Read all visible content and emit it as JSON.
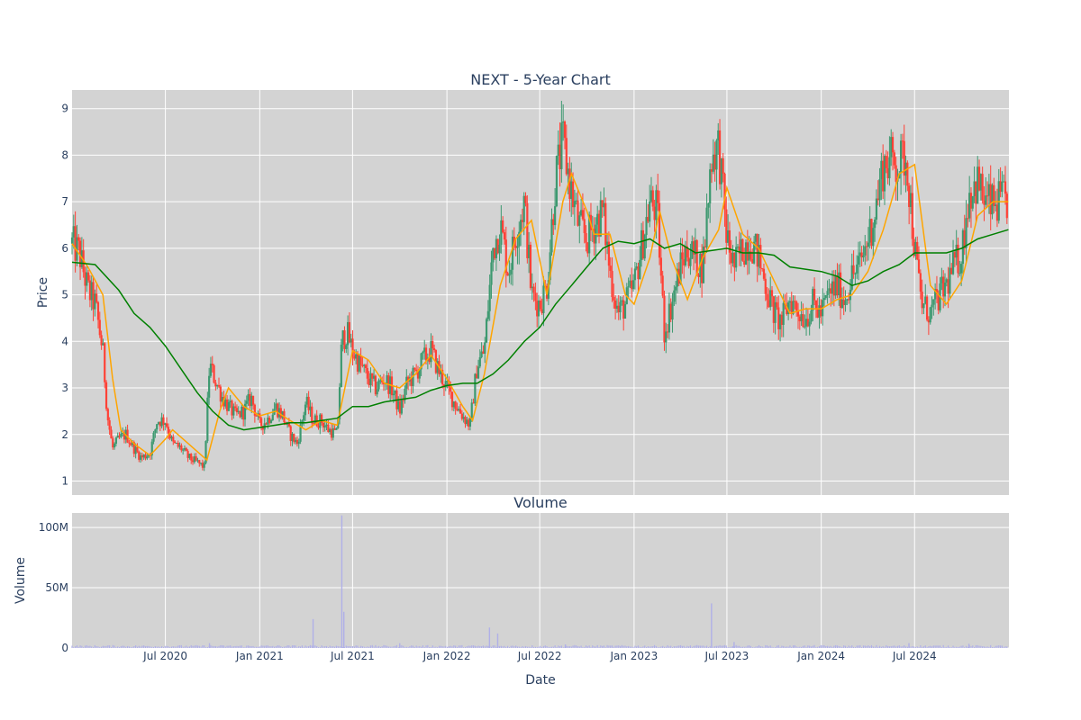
{
  "chart_data": [
    {
      "type": "candlestick",
      "title": "NEXT - 5-Year Chart",
      "ylabel": "Price",
      "xlabel": "",
      "ylim": [
        0.7,
        9.4
      ],
      "xlim": [
        "2020-01-01",
        "2025-01-01"
      ],
      "yticks": [
        1,
        2,
        3,
        4,
        5,
        6,
        7,
        8,
        9
      ],
      "grid": true,
      "background": "#d3d3d3",
      "up_color": "#3d9970",
      "down_color": "#ff4136",
      "close_series": [
        [
          "2020-01-01",
          6.1
        ],
        [
          "2020-01-15",
          5.9
        ],
        [
          "2020-02-01",
          5.1
        ],
        [
          "2020-02-15",
          4.8
        ],
        [
          "2020-03-01",
          3.8
        ],
        [
          "2020-03-10",
          2.4
        ],
        [
          "2020-03-20",
          1.7
        ],
        [
          "2020-04-01",
          1.9
        ],
        [
          "2020-04-15",
          2.0
        ],
        [
          "2020-05-01",
          1.7
        ],
        [
          "2020-05-15",
          1.5
        ],
        [
          "2020-06-01",
          1.6
        ],
        [
          "2020-06-15",
          2.3
        ],
        [
          "2020-07-01",
          2.3
        ],
        [
          "2020-07-15",
          1.8
        ],
        [
          "2020-08-01",
          1.7
        ],
        [
          "2020-08-15",
          1.5
        ],
        [
          "2020-09-01",
          1.4
        ],
        [
          "2020-09-15",
          1.3
        ],
        [
          "2020-09-25",
          3.5
        ],
        [
          "2020-10-05",
          3.2
        ],
        [
          "2020-10-20",
          2.8
        ],
        [
          "2020-11-01",
          2.6
        ],
        [
          "2020-11-15",
          2.4
        ],
        [
          "2020-12-01",
          2.5
        ],
        [
          "2020-12-15",
          2.8
        ],
        [
          "2021-01-01",
          2.2
        ],
        [
          "2021-01-15",
          2.3
        ],
        [
          "2021-02-01",
          2.6
        ],
        [
          "2021-02-15",
          2.4
        ],
        [
          "2021-03-01",
          2.0
        ],
        [
          "2021-03-15",
          1.8
        ],
        [
          "2021-04-01",
          2.7
        ],
        [
          "2021-04-15",
          2.3
        ],
        [
          "2021-05-01",
          2.3
        ],
        [
          "2021-05-15",
          2.1
        ],
        [
          "2021-06-01",
          2.0
        ],
        [
          "2021-06-10",
          4.0
        ],
        [
          "2021-06-20",
          4.2
        ],
        [
          "2021-07-01",
          3.8
        ],
        [
          "2021-07-15",
          3.5
        ],
        [
          "2021-08-01",
          3.2
        ],
        [
          "2021-08-15",
          3.0
        ],
        [
          "2021-09-01",
          3.2
        ],
        [
          "2021-09-15",
          3.0
        ],
        [
          "2021-10-01",
          2.5
        ],
        [
          "2021-10-15",
          3.1
        ],
        [
          "2021-11-01",
          3.3
        ],
        [
          "2021-11-15",
          3.6
        ],
        [
          "2021-12-01",
          3.8
        ],
        [
          "2021-12-15",
          3.4
        ],
        [
          "2022-01-01",
          3.0
        ],
        [
          "2022-01-15",
          2.7
        ],
        [
          "2022-02-01",
          2.4
        ],
        [
          "2022-02-15",
          2.2
        ],
        [
          "2022-03-01",
          3.5
        ],
        [
          "2022-03-15",
          3.8
        ],
        [
          "2022-04-01",
          6.0
        ],
        [
          "2022-04-15",
          6.5
        ],
        [
          "2022-05-01",
          5.5
        ],
        [
          "2022-05-15",
          6.3
        ],
        [
          "2022-06-01",
          7.0
        ],
        [
          "2022-06-15",
          5.0
        ],
        [
          "2022-07-01",
          4.8
        ],
        [
          "2022-07-15",
          5.2
        ],
        [
          "2022-08-01",
          7.5
        ],
        [
          "2022-08-15",
          8.3
        ],
        [
          "2022-09-01",
          7.2
        ],
        [
          "2022-09-15",
          6.5
        ],
        [
          "2022-10-01",
          6.2
        ],
        [
          "2022-10-15",
          6.5
        ],
        [
          "2022-11-01",
          6.8
        ],
        [
          "2022-11-15",
          5.5
        ],
        [
          "2022-12-01",
          4.6
        ],
        [
          "2022-12-15",
          4.8
        ],
        [
          "2023-01-01",
          5.2
        ],
        [
          "2023-01-15",
          6.0
        ],
        [
          "2023-02-01",
          7.0
        ],
        [
          "2023-02-15",
          6.8
        ],
        [
          "2023-03-01",
          4.2
        ],
        [
          "2023-03-15",
          4.8
        ],
        [
          "2023-04-01",
          5.6
        ],
        [
          "2023-04-15",
          6.0
        ],
        [
          "2023-05-01",
          5.8
        ],
        [
          "2023-05-15",
          5.6
        ],
        [
          "2023-06-01",
          8.0
        ],
        [
          "2023-06-15",
          8.2
        ],
        [
          "2023-07-01",
          6.2
        ],
        [
          "2023-07-15",
          5.6
        ],
        [
          "2023-08-01",
          6.0
        ],
        [
          "2023-08-15",
          6.2
        ],
        [
          "2023-09-01",
          5.8
        ],
        [
          "2023-09-15",
          5.2
        ],
        [
          "2023-10-01",
          4.6
        ],
        [
          "2023-10-15",
          4.4
        ],
        [
          "2023-11-01",
          4.9
        ],
        [
          "2023-11-15",
          4.7
        ],
        [
          "2023-12-01",
          4.5
        ],
        [
          "2023-12-15",
          4.8
        ],
        [
          "2024-01-01",
          4.6
        ],
        [
          "2024-01-15",
          5.0
        ],
        [
          "2024-02-01",
          5.2
        ],
        [
          "2024-02-15",
          4.9
        ],
        [
          "2024-03-01",
          5.4
        ],
        [
          "2024-03-15",
          5.6
        ],
        [
          "2024-04-01",
          6.2
        ],
        [
          "2024-04-15",
          6.8
        ],
        [
          "2024-05-01",
          7.8
        ],
        [
          "2024-05-15",
          7.9
        ],
        [
          "2024-06-01",
          7.8
        ],
        [
          "2024-06-15",
          8.0
        ],
        [
          "2024-07-01",
          6.0
        ],
        [
          "2024-07-15",
          4.8
        ],
        [
          "2024-08-01",
          4.6
        ],
        [
          "2024-08-15",
          4.9
        ],
        [
          "2024-09-01",
          5.2
        ],
        [
          "2024-09-15",
          5.6
        ],
        [
          "2024-10-01",
          5.9
        ],
        [
          "2024-10-15",
          7.2
        ],
        [
          "2024-11-01",
          7.4
        ],
        [
          "2024-11-15",
          7.0
        ],
        [
          "2024-12-01",
          6.9
        ],
        [
          "2024-12-15",
          7.0
        ],
        [
          "2024-12-31",
          7.0
        ]
      ],
      "series": [
        {
          "name": "",
          "color": "#ffa500",
          "points": [
            [
              "2020-01-01",
              6.1
            ],
            [
              "2020-02-01",
              5.6
            ],
            [
              "2020-03-01",
              5.0
            ],
            [
              "2020-03-20",
              3.2
            ],
            [
              "2020-04-05",
              2.1
            ],
            [
              "2020-05-01",
              1.8
            ],
            [
              "2020-06-01",
              1.55
            ],
            [
              "2020-07-01",
              1.9
            ],
            [
              "2020-07-15",
              2.1
            ],
            [
              "2020-08-15",
              1.8
            ],
            [
              "2020-09-20",
              1.45
            ],
            [
              "2020-10-15",
              2.5
            ],
            [
              "2020-11-01",
              3.0
            ],
            [
              "2020-12-01",
              2.6
            ],
            [
              "2021-01-01",
              2.4
            ],
            [
              "2021-02-01",
              2.5
            ],
            [
              "2021-03-01",
              2.3
            ],
            [
              "2021-04-01",
              2.1
            ],
            [
              "2021-05-01",
              2.3
            ],
            [
              "2021-06-01",
              2.2
            ],
            [
              "2021-07-01",
              3.8
            ],
            [
              "2021-08-01",
              3.6
            ],
            [
              "2021-09-01",
              3.1
            ],
            [
              "2021-10-01",
              3.0
            ],
            [
              "2021-11-01",
              3.3
            ],
            [
              "2021-12-01",
              3.7
            ],
            [
              "2022-01-01",
              3.2
            ],
            [
              "2022-02-01",
              2.6
            ],
            [
              "2022-02-20",
              2.3
            ],
            [
              "2022-03-15",
              3.3
            ],
            [
              "2022-04-15",
              5.2
            ],
            [
              "2022-05-15",
              6.2
            ],
            [
              "2022-06-15",
              6.6
            ],
            [
              "2022-07-15",
              5.0
            ],
            [
              "2022-08-15",
              7.0
            ],
            [
              "2022-09-01",
              7.6
            ],
            [
              "2022-10-01",
              6.8
            ],
            [
              "2022-10-15",
              6.3
            ],
            [
              "2022-11-15",
              6.3
            ],
            [
              "2022-12-15",
              5.0
            ],
            [
              "2023-01-01",
              4.8
            ],
            [
              "2023-02-01",
              5.8
            ],
            [
              "2023-02-20",
              6.8
            ],
            [
              "2023-03-15",
              5.8
            ],
            [
              "2023-04-15",
              4.9
            ],
            [
              "2023-05-15",
              5.8
            ],
            [
              "2023-06-15",
              6.4
            ],
            [
              "2023-07-01",
              7.3
            ],
            [
              "2023-08-01",
              6.3
            ],
            [
              "2023-09-01",
              6.0
            ],
            [
              "2023-10-01",
              5.3
            ],
            [
              "2023-11-01",
              4.6
            ],
            [
              "2023-12-01",
              4.7
            ],
            [
              "2024-01-01",
              4.7
            ],
            [
              "2024-02-01",
              4.9
            ],
            [
              "2024-03-01",
              5.0
            ],
            [
              "2024-04-01",
              5.5
            ],
            [
              "2024-05-01",
              6.4
            ],
            [
              "2024-06-01",
              7.6
            ],
            [
              "2024-07-01",
              7.8
            ],
            [
              "2024-08-01",
              5.2
            ],
            [
              "2024-09-01",
              4.8
            ],
            [
              "2024-10-01",
              5.3
            ],
            [
              "2024-11-01",
              6.7
            ],
            [
              "2024-12-01",
              7.0
            ],
            [
              "2024-12-31",
              7.0
            ]
          ]
        },
        {
          "name": "",
          "color": "#008000",
          "points": [
            [
              "2020-01-01",
              5.7
            ],
            [
              "2020-02-15",
              5.65
            ],
            [
              "2020-04-01",
              5.1
            ],
            [
              "2020-05-01",
              4.6
            ],
            [
              "2020-06-01",
              4.3
            ],
            [
              "2020-07-01",
              3.9
            ],
            [
              "2020-08-01",
              3.4
            ],
            [
              "2020-09-01",
              2.9
            ],
            [
              "2020-10-01",
              2.5
            ],
            [
              "2020-11-01",
              2.2
            ],
            [
              "2020-12-01",
              2.1
            ],
            [
              "2021-01-01",
              2.15
            ],
            [
              "2021-02-01",
              2.2
            ],
            [
              "2021-03-01",
              2.25
            ],
            [
              "2021-04-01",
              2.25
            ],
            [
              "2021-05-01",
              2.3
            ],
            [
              "2021-06-01",
              2.35
            ],
            [
              "2021-07-01",
              2.6
            ],
            [
              "2021-08-01",
              2.6
            ],
            [
              "2021-09-01",
              2.7
            ],
            [
              "2021-10-01",
              2.75
            ],
            [
              "2021-11-01",
              2.8
            ],
            [
              "2021-12-01",
              2.95
            ],
            [
              "2022-01-01",
              3.05
            ],
            [
              "2022-02-01",
              3.1
            ],
            [
              "2022-03-01",
              3.1
            ],
            [
              "2022-04-01",
              3.3
            ],
            [
              "2022-05-01",
              3.6
            ],
            [
              "2022-06-01",
              4.0
            ],
            [
              "2022-07-01",
              4.3
            ],
            [
              "2022-08-01",
              4.8
            ],
            [
              "2022-09-01",
              5.2
            ],
            [
              "2022-10-01",
              5.6
            ],
            [
              "2022-11-01",
              6.0
            ],
            [
              "2022-12-01",
              6.15
            ],
            [
              "2023-01-01",
              6.1
            ],
            [
              "2023-02-01",
              6.2
            ],
            [
              "2023-03-01",
              6.0
            ],
            [
              "2023-04-01",
              6.1
            ],
            [
              "2023-05-01",
              5.9
            ],
            [
              "2023-06-01",
              5.95
            ],
            [
              "2023-07-01",
              6.0
            ],
            [
              "2023-08-01",
              5.9
            ],
            [
              "2023-09-01",
              5.9
            ],
            [
              "2023-10-01",
              5.85
            ],
            [
              "2023-11-01",
              5.6
            ],
            [
              "2023-12-01",
              5.55
            ],
            [
              "2024-01-01",
              5.5
            ],
            [
              "2024-02-01",
              5.4
            ],
            [
              "2024-03-01",
              5.2
            ],
            [
              "2024-04-01",
              5.3
            ],
            [
              "2024-05-01",
              5.5
            ],
            [
              "2024-06-01",
              5.65
            ],
            [
              "2024-07-01",
              5.9
            ],
            [
              "2024-08-01",
              5.9
            ],
            [
              "2024-09-01",
              5.9
            ],
            [
              "2024-10-01",
              6.0
            ],
            [
              "2024-11-01",
              6.2
            ],
            [
              "2024-12-01",
              6.3
            ],
            [
              "2024-12-31",
              6.4
            ]
          ]
        }
      ]
    },
    {
      "type": "bar",
      "title": "Volume",
      "ylabel": "Volume",
      "xlabel": "Date",
      "ylim": [
        0,
        112000000
      ],
      "xlim": [
        "2020-01-01",
        "2025-01-01"
      ],
      "ytick_values": [
        0,
        50000000,
        100000000
      ],
      "ytick_labels": [
        "0",
        "50M",
        "100M"
      ],
      "xtick_values": [
        "2020-07-01",
        "2021-01-01",
        "2021-07-01",
        "2022-01-01",
        "2022-07-01",
        "2023-01-01",
        "2023-07-01",
        "2024-01-01",
        "2024-07-01"
      ],
      "xtick_labels": [
        "Jul 2020",
        "Jan 2021",
        "Jul 2021",
        "Jan 2022",
        "Jul 2022",
        "Jan 2023",
        "Jul 2023",
        "Jan 2024",
        "Jul 2024"
      ],
      "grid": true,
      "background": "#d3d3d3",
      "bar_color": "#b0b0e8",
      "baseline_volume": 1500000,
      "spikes": [
        [
          "2020-09-25",
          4000000
        ],
        [
          "2021-04-15",
          24000000
        ],
        [
          "2021-06-10",
          110000000
        ],
        [
          "2021-06-14",
          30000000
        ],
        [
          "2021-10-01",
          4000000
        ],
        [
          "2022-03-25",
          17000000
        ],
        [
          "2022-04-10",
          12000000
        ],
        [
          "2022-08-20",
          3000000
        ],
        [
          "2023-06-01",
          37000000
        ],
        [
          "2023-07-15",
          5000000
        ],
        [
          "2024-06-20",
          4000000
        ],
        [
          "2024-10-15",
          3500000
        ]
      ]
    }
  ]
}
